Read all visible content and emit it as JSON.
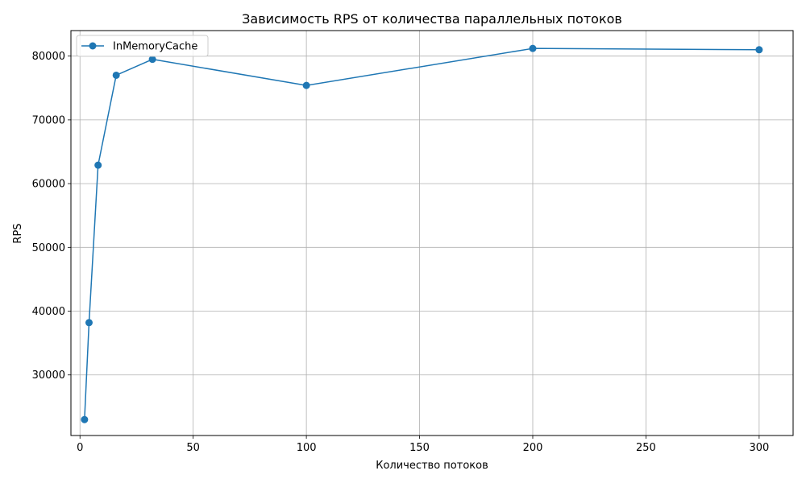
{
  "chart_data": {
    "type": "line",
    "title": "Зависимость RPS от количества параллельных потоков",
    "xlabel": "Количество потоков",
    "ylabel": "RPS",
    "xlim": [
      -4,
      315
    ],
    "ylim": [
      20500,
      84000
    ],
    "xticks": [
      0,
      50,
      100,
      150,
      200,
      250,
      300
    ],
    "yticks": [
      30000,
      40000,
      50000,
      60000,
      70000,
      80000
    ],
    "grid": true,
    "legend_position": "top-left",
    "series": [
      {
        "name": "InMemoryCache",
        "color": "#1f77b4",
        "marker": "circle",
        "x": [
          2,
          4,
          8,
          16,
          32,
          100,
          200,
          300
        ],
        "y": [
          23000,
          38200,
          62900,
          77000,
          79500,
          75400,
          81200,
          81000
        ]
      }
    ]
  }
}
